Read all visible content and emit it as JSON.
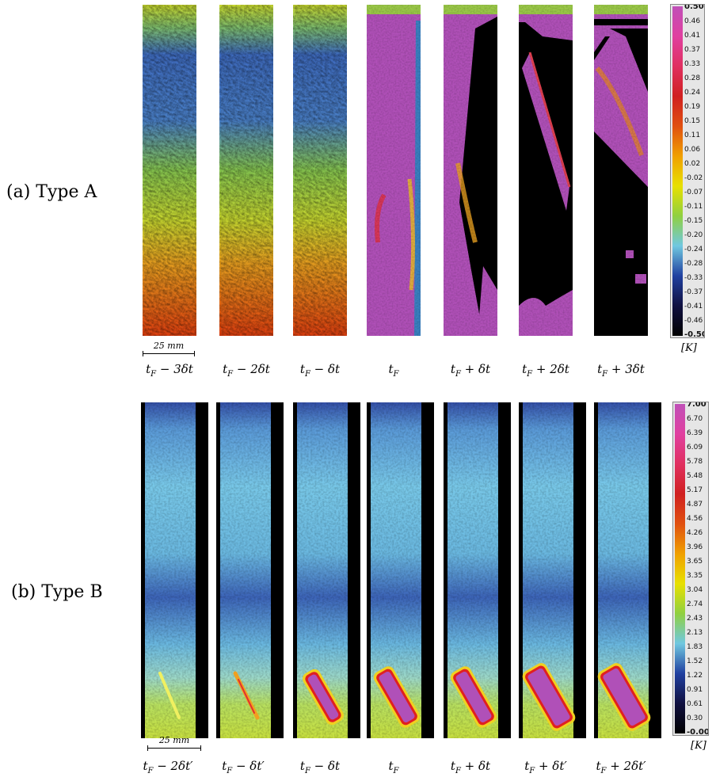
{
  "row_a": {
    "label": "(a) Type A",
    "frames": [
      {
        "base": "t",
        "sub": "F",
        "rest": " − 3δt",
        "style": "textured"
      },
      {
        "base": "t",
        "sub": "F",
        "rest": " − 2δt",
        "style": "textured"
      },
      {
        "base": "t",
        "sub": "F",
        "rest": " − δt",
        "style": "textured"
      },
      {
        "base": "t",
        "sub": "F",
        "rest": "",
        "style": "crack0"
      },
      {
        "base": "t",
        "sub": "F",
        "rest": " + δt",
        "style": "crack1"
      },
      {
        "base": "t",
        "sub": "F",
        "rest": " + 2δt",
        "style": "crack2"
      },
      {
        "base": "t",
        "sub": "F",
        "rest": " + 3δt",
        "style": "crack3"
      }
    ],
    "scale_bar": "25 mm",
    "colorbar": {
      "unit": "[K]",
      "ticks": [
        "0.50",
        "0.46",
        "0.41",
        "0.37",
        "0.33",
        "0.28",
        "0.24",
        "0.19",
        "0.15",
        "0.11",
        "0.06",
        "0.02",
        "-0.02",
        "-0.07",
        "-0.11",
        "-0.15",
        "-0.20",
        "-0.24",
        "-0.28",
        "-0.33",
        "-0.37",
        "-0.41",
        "-0.46",
        "-0.50"
      ],
      "colors": [
        "#c050b8",
        "#e040a0",
        "#e03060",
        "#d02020",
        "#e05010",
        "#f0a000",
        "#e8e000",
        "#90d040",
        "#70c8e0",
        "#2040a0",
        "#101040",
        "#000000"
      ]
    }
  },
  "row_b": {
    "label": "(b) Type B",
    "frames": [
      {
        "base": "t",
        "sub": "F",
        "rest": " − 2δt′",
        "stage": 0
      },
      {
        "base": "t",
        "sub": "F",
        "rest": " − δt′",
        "stage": 1
      },
      {
        "base": "t",
        "sub": "F",
        "rest": " − δt",
        "stage": 2
      },
      {
        "base": "t",
        "sub": "F",
        "rest": "",
        "stage": 3
      },
      {
        "base": "t",
        "sub": "F",
        "rest": " + δt",
        "stage": 3
      },
      {
        "base": "t",
        "sub": "F",
        "rest": " + δt′",
        "stage": 4
      },
      {
        "base": "t",
        "sub": "F",
        "rest": " + 2δt′",
        "stage": 4
      }
    ],
    "scale_bar": "25 mm",
    "colorbar": {
      "unit": "[K]",
      "ticks": [
        "7.00",
        "6.70",
        "6.39",
        "6.09",
        "5.78",
        "5.48",
        "5.17",
        "4.87",
        "4.56",
        "4.26",
        "3.96",
        "3.65",
        "3.35",
        "3.04",
        "2.74",
        "2.43",
        "2.13",
        "1.83",
        "1.52",
        "1.22",
        "0.91",
        "0.61",
        "0.30",
        "-0.00"
      ],
      "colors": [
        "#c050b8",
        "#e040a0",
        "#e03060",
        "#d02020",
        "#e05010",
        "#f0a000",
        "#e8e000",
        "#90d040",
        "#70c8e0",
        "#2040a0",
        "#101040",
        "#000000"
      ]
    }
  }
}
